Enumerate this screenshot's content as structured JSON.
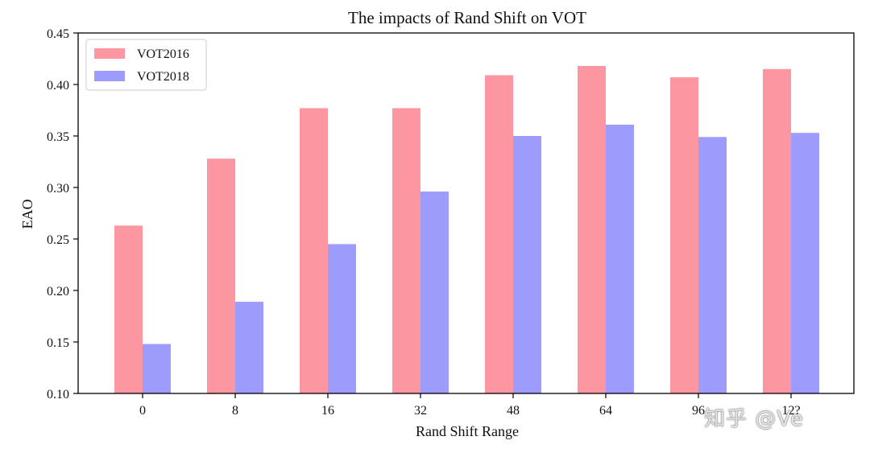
{
  "chart_data": {
    "type": "bar",
    "title": "The impacts of Rand Shift on VOT",
    "xlabel": "Rand Shift Range",
    "ylabel": "EAO",
    "categories": [
      "0",
      "8",
      "16",
      "32",
      "48",
      "64",
      "96",
      "121"
    ],
    "category_labels": [
      "0",
      "8",
      "16",
      "32",
      "48",
      "64",
      "96",
      "12?"
    ],
    "series": [
      {
        "name": "VOT2016",
        "color": "#fc97a2",
        "values": [
          0.263,
          0.328,
          0.377,
          0.377,
          0.409,
          0.418,
          0.407,
          0.415
        ]
      },
      {
        "name": "VOT2018",
        "color": "#9d9bfc",
        "values": [
          0.148,
          0.189,
          0.245,
          0.296,
          0.35,
          0.361,
          0.349,
          0.353
        ]
      }
    ],
    "ylim": [
      0.1,
      0.45
    ],
    "yticks": [
      "0.10",
      "0.15",
      "0.20",
      "0.25",
      "0.30",
      "0.35",
      "0.40",
      "0.45"
    ],
    "grid": false,
    "legend_position": "top-left"
  },
  "watermark": "知乎 @Ve"
}
